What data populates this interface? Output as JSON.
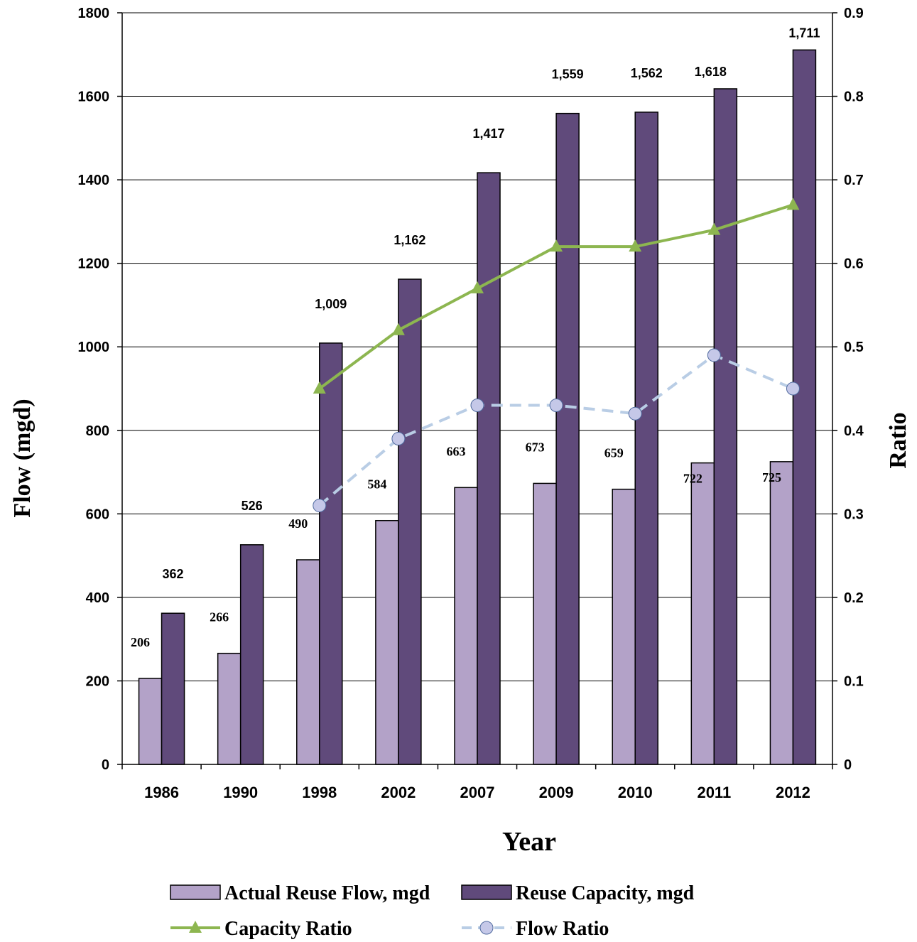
{
  "chart_data": {
    "type": "bar",
    "categories": [
      "1986",
      "1990",
      "1998",
      "2002",
      "2007",
      "2009",
      "2010",
      "2011",
      "2012"
    ],
    "series": [
      {
        "name": "Actual Reuse Flow, mgd",
        "kind": "bar",
        "axis": "left",
        "color": "#b3a2c8",
        "values": [
          206,
          266,
          490,
          584,
          663,
          673,
          659,
          722,
          725
        ],
        "labels": [
          "206",
          "266",
          "490",
          "584",
          "663",
          "673",
          "659",
          "722",
          "725"
        ]
      },
      {
        "name": "Reuse Capacity, mgd",
        "kind": "bar",
        "axis": "left",
        "color": "#604a7b",
        "values": [
          362,
          526,
          1009,
          1162,
          1417,
          1559,
          1562,
          1618,
          1711
        ],
        "labels": [
          "362",
          "526",
          "1,009",
          "1,162",
          "1,417",
          "1,559",
          "1,562",
          "1,618",
          "1,711"
        ]
      },
      {
        "name": "Capacity Ratio",
        "kind": "line",
        "axis": "right",
        "color": "#8db650",
        "marker": "triangle",
        "values": [
          null,
          null,
          0.45,
          0.52,
          0.57,
          0.62,
          0.62,
          0.64,
          0.67
        ]
      },
      {
        "name": "Flow Ratio",
        "kind": "line",
        "axis": "right",
        "color": "#b9cde5",
        "marker": "circle",
        "dashed": true,
        "values": [
          null,
          null,
          0.31,
          0.39,
          0.43,
          0.43,
          0.42,
          0.49,
          0.45
        ]
      }
    ],
    "xlabel": "Year",
    "ylabel": "Flow (mgd)",
    "y2label": "Ratio",
    "ylim": [
      0,
      1800
    ],
    "y2lim": [
      0,
      0.9
    ],
    "yticks": [
      "0",
      "200",
      "400",
      "600",
      "800",
      "1000",
      "1200",
      "1400",
      "1600",
      "1800"
    ],
    "y2ticks": [
      "0",
      "0.1",
      "0.2",
      "0.3",
      "0.4",
      "0.5",
      "0.6",
      "0.7",
      "0.8",
      "0.9"
    ],
    "grid": true,
    "legend_position": "bottom"
  }
}
